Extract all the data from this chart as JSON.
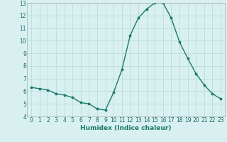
{
  "x": [
    0,
    1,
    2,
    3,
    4,
    5,
    6,
    7,
    8,
    9,
    10,
    11,
    12,
    13,
    14,
    15,
    16,
    17,
    18,
    19,
    20,
    21,
    22,
    23
  ],
  "y": [
    6.3,
    6.2,
    6.1,
    5.8,
    5.7,
    5.5,
    5.1,
    5.0,
    4.6,
    4.5,
    5.9,
    7.7,
    10.4,
    11.8,
    12.5,
    13.0,
    13.0,
    11.8,
    9.9,
    8.6,
    7.4,
    6.5,
    5.8,
    5.4
  ],
  "line_color": "#1a7a6a",
  "marker": "*",
  "marker_size": 2.5,
  "bg_color": "#d8f0f0",
  "grid_color": "#b8d8d8",
  "xlabel": "Humidex (Indice chaleur)",
  "ylim": [
    4,
    13
  ],
  "xlim": [
    -0.5,
    23.5
  ],
  "yticks": [
    4,
    5,
    6,
    7,
    8,
    9,
    10,
    11,
    12,
    13
  ],
  "xticks": [
    0,
    1,
    2,
    3,
    4,
    5,
    6,
    7,
    8,
    9,
    10,
    11,
    12,
    13,
    14,
    15,
    16,
    17,
    18,
    19,
    20,
    21,
    22,
    23
  ],
  "xlabel_fontsize": 6.5,
  "tick_fontsize": 5.5,
  "line_width": 1.0
}
